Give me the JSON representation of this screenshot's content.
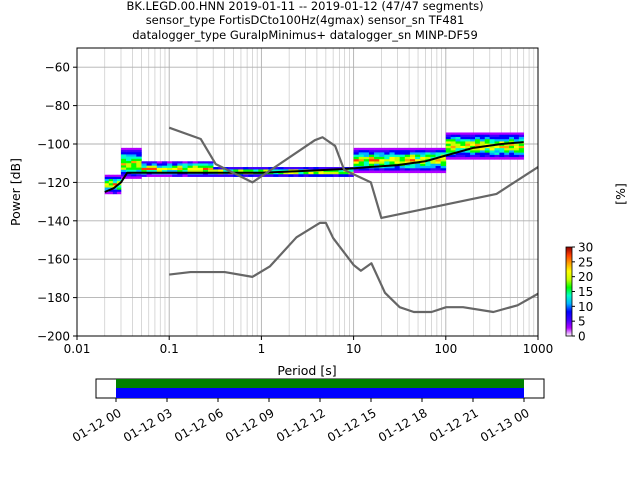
{
  "title_lines": [
    "BK.LEGD.00.HNN   2019-01-11 -- 2019-01-12  (47/47 segments)",
    "sensor_type FortisDCto100Hz(4gmax) sensor_sn TF481",
    "datalogger_type GuralpMinimus+ datalogger_sn MINP-DF59"
  ],
  "chart_data": [
    {
      "type": "heatmap",
      "xlabel": "Period [s]",
      "ylabel": "Power [dB]",
      "x_scale": "log",
      "xlim": [
        0.01,
        1000
      ],
      "ylim": [
        -200,
        -50
      ],
      "x_ticks": [
        0.01,
        0.1,
        1,
        10,
        100,
        1000
      ],
      "x_tick_labels": [
        "0.01",
        "0.1",
        "1",
        "10",
        "100",
        "1000"
      ],
      "y_ticks": [
        -200,
        -180,
        -160,
        -140,
        -120,
        -100,
        -80,
        -60
      ],
      "y_tick_labels": [
        "−200",
        "−180",
        "−160",
        "−140",
        "−120",
        "−100",
        "−80",
        "−60"
      ],
      "grid": true,
      "colorbar": {
        "label": "[%]",
        "min": 0,
        "max": 30,
        "ticks": [
          0,
          5,
          10,
          15,
          20,
          25,
          30
        ],
        "tick_labels": [
          "0",
          "5",
          "10",
          "15",
          "20",
          "25",
          "30"
        ],
        "colormap": [
          "#ffffff",
          "#b000ff",
          "#3c00ff",
          "#0000ff",
          "#00b4ff",
          "#00ffc8",
          "#00ff00",
          "#c8ff00",
          "#ffff00",
          "#ffa000",
          "#ff3c00",
          "#8b0000"
        ]
      },
      "series": [
        {
          "role": "median",
          "color": "#000000",
          "points": [
            [
              0.02,
              -125
            ],
            [
              0.025,
              -123
            ],
            [
              0.03,
              -120
            ],
            [
              0.035,
              -115
            ],
            [
              0.05,
              -115
            ],
            [
              0.1,
              -115
            ],
            [
              0.3,
              -115
            ],
            [
              1,
              -115
            ],
            [
              3,
              -114
            ],
            [
              8,
              -113
            ],
            [
              15,
              -112
            ],
            [
              30,
              -111
            ],
            [
              60,
              -109
            ],
            [
              100,
              -106
            ],
            [
              200,
              -102
            ],
            [
              400,
              -100
            ],
            [
              700,
              -99
            ]
          ]
        },
        {
          "role": "high-noise-model",
          "color": "#666666",
          "points": [
            [
              0.1,
              -91.5
            ],
            [
              0.22,
              -97.4
            ],
            [
              0.32,
              -110.5
            ],
            [
              0.8,
              -120
            ],
            [
              3.8,
              -98
            ],
            [
              4.6,
              -96.5
            ],
            [
              6.3,
              -101
            ],
            [
              7.9,
              -113.5
            ],
            [
              15.4,
              -120
            ],
            [
              20,
              -138.5
            ],
            [
              354.8,
              -126
            ],
            [
              1000,
              -112
            ]
          ]
        },
        {
          "role": "low-noise-model",
          "color": "#666666",
          "points": [
            [
              0.1,
              -168
            ],
            [
              0.17,
              -166.7
            ],
            [
              0.4,
              -166.7
            ],
            [
              0.8,
              -169.2
            ],
            [
              1.24,
              -163.7
            ],
            [
              2.4,
              -148.6
            ],
            [
              4.3,
              -141.1
            ],
            [
              5,
              -141.1
            ],
            [
              6,
              -149
            ],
            [
              10,
              -163
            ],
            [
              12,
              -166
            ],
            [
              15.6,
              -162.1
            ],
            [
              21.9,
              -177.5
            ],
            [
              31.6,
              -185
            ],
            [
              45,
              -187.5
            ],
            [
              70,
              -187.5
            ],
            [
              101,
              -185
            ],
            [
              154,
              -185
            ],
            [
              328,
              -187.5
            ],
            [
              600,
              -184
            ],
            [
              1000,
              -178
            ]
          ]
        },
        {
          "role": "psd-density",
          "note": "probability density of PSD values per period bin",
          "bands": [
            {
              "x": [
                0.02,
                0.03
              ],
              "y": [
                -126,
                -116
              ]
            },
            {
              "x": [
                0.03,
                0.05
              ],
              "y": [
                -118,
                -102
              ]
            },
            {
              "x": [
                0.05,
                0.3
              ],
              "y": [
                -117,
                -109
              ]
            },
            {
              "x": [
                0.3,
                10
              ],
              "y": [
                -117,
                -112
              ]
            },
            {
              "x": [
                10,
                100
              ],
              "y": [
                -115,
                -102
              ]
            },
            {
              "x": [
                100,
                700
              ],
              "y": [
                -108,
                -94
              ]
            }
          ]
        }
      ]
    },
    {
      "type": "timeline",
      "x_tick_labels": [
        "01-12 00",
        "01-12 03",
        "01-12 06",
        "01-12 09",
        "01-12 12",
        "01-12 15",
        "01-12 18",
        "01-12 21",
        "01-13 00"
      ],
      "bars": [
        {
          "color": "#008000",
          "start": "01-12 00",
          "end": "01-13 00"
        },
        {
          "color": "#0000ff",
          "start": "01-12 00",
          "end": "01-13 00"
        }
      ]
    }
  ]
}
